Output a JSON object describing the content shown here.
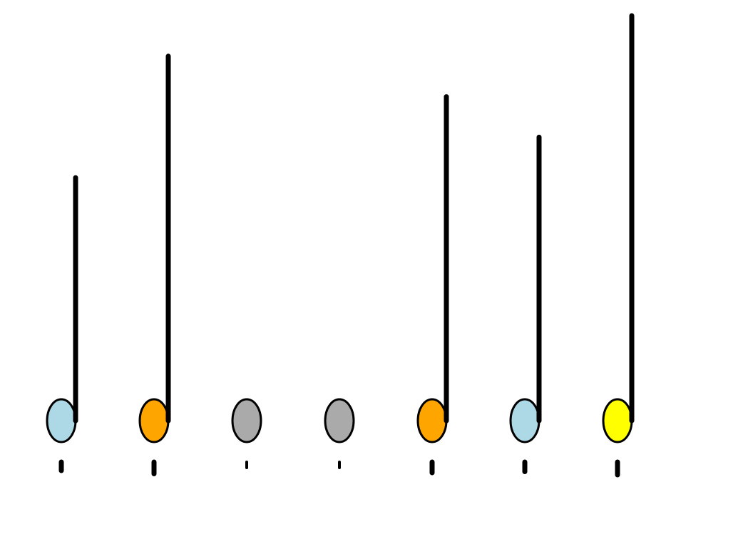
{
  "diagram": {
    "colors": {
      "stroke": "#000000",
      "background": "#ffffff"
    },
    "notes": [
      {
        "color": "#add8e6",
        "stem": 0.6,
        "mark": 0.4
      },
      {
        "color": "#ffa500",
        "stem": 0.9,
        "mark": 0.55
      },
      {
        "color": "#aaaaaa",
        "stem": 0.0,
        "mark": 0.2
      },
      {
        "color": "#aaaaaa",
        "stem": 0.0,
        "mark": 0.2
      },
      {
        "color": "#ffa500",
        "stem": 0.8,
        "mark": 0.5
      },
      {
        "color": "#add8e6",
        "stem": 0.7,
        "mark": 0.45
      },
      {
        "color": "#ffff00",
        "stem": 1.0,
        "mark": 0.6
      }
    ]
  }
}
